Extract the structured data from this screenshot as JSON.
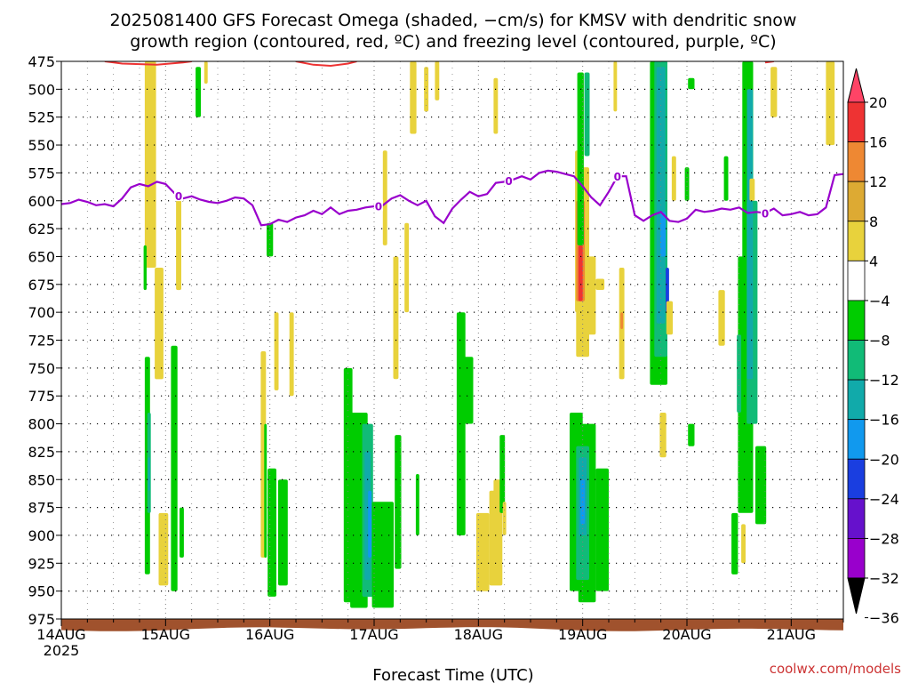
{
  "title": {
    "line1": "2025081400 GFS Forecast Omega (shaded, −cm/s) for KMSV with dendritic snow",
    "line2": "growth region (contoured, red, ºC) and freezing level (contoured, purple, ºC)"
  },
  "credit": {
    "text": "coolwx.com/models",
    "color": "#cc3333"
  },
  "colors": {
    "terrain": "#a0522d",
    "freezing_line": "#9900cc",
    "dgz_line": "#ee3333",
    "grid": "#808080"
  },
  "chart_data": {
    "type": "heatmap",
    "xlabel": "Forecast Time (UTC)",
    "x_ticks": [
      {
        "label": "14AUG",
        "sub": "2025",
        "hour": 0
      },
      {
        "label": "15AUG",
        "sub": "",
        "hour": 24
      },
      {
        "label": "16AUG",
        "sub": "",
        "hour": 48
      },
      {
        "label": "17AUG",
        "sub": "",
        "hour": 72
      },
      {
        "label": "18AUG",
        "sub": "",
        "hour": 96
      },
      {
        "label": "19AUG",
        "sub": "",
        "hour": 120
      },
      {
        "label": "20AUG",
        "sub": "",
        "hour": 144
      },
      {
        "label": "21AUG",
        "sub": "",
        "hour": 168
      }
    ],
    "x_range_hours": [
      0,
      180
    ],
    "y_ticks": [
      475,
      500,
      525,
      550,
      575,
      600,
      625,
      650,
      675,
      700,
      725,
      750,
      775,
      800,
      825,
      850,
      875,
      900,
      925,
      950,
      975
    ],
    "y_range_hpa": [
      475,
      975
    ],
    "grid": true,
    "colorbar": {
      "labels": [
        "20",
        "16",
        "12",
        "8",
        "4",
        "−4",
        "−8",
        "−12",
        "−16",
        "−20",
        "−24",
        "−28",
        "−32",
        "−36"
      ],
      "colors": [
        "#ff4466",
        "#ee3333",
        "#ee8833",
        "#ddaa33",
        "#e8d23c",
        "#ffffff",
        "#00cc00",
        "#11bb77",
        "#11aaaa",
        "#1199ee",
        "#1a3ee0",
        "#6611cc",
        "#9900cc",
        "#aaaaaa",
        "#000000"
      ]
    },
    "freezing_level": {
      "label": "0",
      "points": [
        [
          0,
          603
        ],
        [
          2,
          602
        ],
        [
          4,
          599
        ],
        [
          6,
          601
        ],
        [
          8,
          604
        ],
        [
          10,
          603
        ],
        [
          12,
          605
        ],
        [
          14,
          598
        ],
        [
          16,
          588
        ],
        [
          18,
          585
        ],
        [
          20,
          587
        ],
        [
          22,
          583
        ],
        [
          24,
          585
        ],
        [
          26,
          593
        ],
        [
          28,
          598
        ],
        [
          30,
          596
        ],
        [
          32,
          599
        ],
        [
          34,
          601
        ],
        [
          36,
          602
        ],
        [
          38,
          600
        ],
        [
          40,
          597
        ],
        [
          42,
          598
        ],
        [
          44,
          604
        ],
        [
          46,
          622
        ],
        [
          48,
          621
        ],
        [
          50,
          617
        ],
        [
          52,
          619
        ],
        [
          54,
          615
        ],
        [
          56,
          613
        ],
        [
          58,
          609
        ],
        [
          60,
          612
        ],
        [
          62,
          606
        ],
        [
          64,
          612
        ],
        [
          66,
          609
        ],
        [
          68,
          608
        ],
        [
          70,
          606
        ],
        [
          72,
          605
        ],
        [
          74,
          604
        ],
        [
          76,
          598
        ],
        [
          78,
          595
        ],
        [
          80,
          600
        ],
        [
          82,
          604
        ],
        [
          84,
          600
        ],
        [
          86,
          614
        ],
        [
          88,
          620
        ],
        [
          90,
          607
        ],
        [
          92,
          599
        ],
        [
          94,
          592
        ],
        [
          96,
          596
        ],
        [
          98,
          594
        ],
        [
          100,
          584
        ],
        [
          102,
          583
        ],
        [
          104,
          581
        ],
        [
          106,
          578
        ],
        [
          108,
          581
        ],
        [
          110,
          575
        ],
        [
          112,
          573
        ],
        [
          114,
          574
        ],
        [
          116,
          576
        ],
        [
          118,
          578
        ],
        [
          120,
          587
        ],
        [
          122,
          597
        ],
        [
          124,
          604
        ],
        [
          126,
          592
        ],
        [
          128,
          578
        ],
        [
          130,
          578
        ],
        [
          132,
          613
        ],
        [
          134,
          618
        ],
        [
          136,
          613
        ],
        [
          138,
          610
        ],
        [
          140,
          618
        ],
        [
          142,
          619
        ],
        [
          144,
          616
        ],
        [
          146,
          608
        ],
        [
          148,
          610
        ],
        [
          150,
          609
        ],
        [
          152,
          607
        ],
        [
          154,
          608
        ],
        [
          156,
          606
        ],
        [
          158,
          611
        ],
        [
          160,
          610
        ],
        [
          162,
          611
        ],
        [
          164,
          607
        ],
        [
          166,
          613
        ],
        [
          168,
          612
        ],
        [
          170,
          610
        ],
        [
          172,
          613
        ],
        [
          174,
          612
        ],
        [
          176,
          606
        ],
        [
          178,
          577
        ],
        [
          180,
          576
        ]
      ],
      "label_hours": [
        27,
        73,
        103,
        128,
        162
      ]
    },
    "dgz_contours": [
      {
        "points": [
          [
            10,
            475
          ],
          [
            14,
            477
          ],
          [
            22,
            478
          ],
          [
            28,
            476
          ],
          [
            30,
            475
          ]
        ]
      },
      {
        "points": [
          [
            54,
            475
          ],
          [
            58,
            478
          ],
          [
            62,
            479
          ],
          [
            66,
            477
          ],
          [
            68,
            475
          ]
        ]
      },
      {
        "points": [
          [
            162,
            476
          ],
          [
            164,
            475
          ]
        ]
      }
    ],
    "omega_regions": [
      {
        "hour": 20.5,
        "w": 2.6,
        "top": 475,
        "bottom": 660,
        "value": 4
      },
      {
        "hour": 22.5,
        "w": 2.0,
        "top": 660,
        "bottom": 760,
        "value": 4
      },
      {
        "hour": 23.5,
        "w": 2.2,
        "top": 880,
        "bottom": 945,
        "value": 4
      },
      {
        "hour": 19.8,
        "w": 1.2,
        "top": 740,
        "bottom": 935,
        "value": -8
      },
      {
        "hour": 20.2,
        "w": 0.8,
        "top": 790,
        "bottom": 880,
        "value": -12
      },
      {
        "hour": 20.2,
        "w": 0.5,
        "top": 830,
        "bottom": 860,
        "value": -16
      },
      {
        "hour": 19.3,
        "w": 0.7,
        "top": 640,
        "bottom": 680,
        "value": -8
      },
      {
        "hour": 27.0,
        "w": 1.2,
        "top": 590,
        "bottom": 680,
        "value": 4
      },
      {
        "hour": 26.0,
        "w": 1.5,
        "top": 730,
        "bottom": 950,
        "value": -8
      },
      {
        "hour": 27.7,
        "w": 1.0,
        "top": 875,
        "bottom": 920,
        "value": -8
      },
      {
        "hour": 31.5,
        "w": 1.2,
        "top": 480,
        "bottom": 525,
        "value": -8
      },
      {
        "hour": 33.3,
        "w": 0.8,
        "top": 475,
        "bottom": 495,
        "value": 4
      },
      {
        "hour": 46.5,
        "w": 1.2,
        "top": 735,
        "bottom": 920,
        "value": 4
      },
      {
        "hour": 47.0,
        "w": 0.6,
        "top": 800,
        "bottom": 920,
        "value": -8
      },
      {
        "hour": 48.0,
        "w": 1.5,
        "top": 620,
        "bottom": 650,
        "value": -8
      },
      {
        "hour": 48.5,
        "w": 2.0,
        "top": 840,
        "bottom": 955,
        "value": -8
      },
      {
        "hour": 51.0,
        "w": 2.2,
        "top": 850,
        "bottom": 945,
        "value": -8
      },
      {
        "hour": 49.5,
        "w": 1.0,
        "top": 700,
        "bottom": 770,
        "value": 4
      },
      {
        "hour": 53.0,
        "w": 1.0,
        "top": 700,
        "bottom": 775,
        "value": 4
      },
      {
        "hour": 66.0,
        "w": 2.0,
        "top": 750,
        "bottom": 960,
        "value": -8
      },
      {
        "hour": 68.5,
        "w": 4.0,
        "top": 790,
        "bottom": 965,
        "value": -8
      },
      {
        "hour": 70.5,
        "w": 2.5,
        "top": 800,
        "bottom": 955,
        "value": -12
      },
      {
        "hour": 70.5,
        "w": 1.4,
        "top": 825,
        "bottom": 940,
        "value": -16
      },
      {
        "hour": 71.0,
        "w": 0.8,
        "top": 860,
        "bottom": 920,
        "value": -20
      },
      {
        "hour": 74.0,
        "w": 5.0,
        "top": 870,
        "bottom": 965,
        "value": -8
      },
      {
        "hour": 74.5,
        "w": 1.0,
        "top": 555,
        "bottom": 640,
        "value": 4
      },
      {
        "hour": 77.0,
        "w": 1.2,
        "top": 650,
        "bottom": 760,
        "value": 4
      },
      {
        "hour": 79.5,
        "w": 1.0,
        "top": 620,
        "bottom": 700,
        "value": 4
      },
      {
        "hour": 81.0,
        "w": 1.5,
        "top": 475,
        "bottom": 540,
        "value": 4
      },
      {
        "hour": 84.0,
        "w": 1.0,
        "top": 480,
        "bottom": 520,
        "value": 4
      },
      {
        "hour": 86.5,
        "w": 1.0,
        "top": 475,
        "bottom": 510,
        "value": 4
      },
      {
        "hour": 77.5,
        "w": 1.5,
        "top": 810,
        "bottom": 930,
        "value": -8
      },
      {
        "hour": 82.0,
        "w": 0.8,
        "top": 845,
        "bottom": 900,
        "value": -8
      },
      {
        "hour": 92.0,
        "w": 2.0,
        "top": 700,
        "bottom": 900,
        "value": -8
      },
      {
        "hour": 93.5,
        "w": 2.6,
        "top": 740,
        "bottom": 800,
        "value": -8
      },
      {
        "hour": 97.0,
        "w": 3.0,
        "top": 880,
        "bottom": 950,
        "value": 4
      },
      {
        "hour": 100.0,
        "w": 3.0,
        "top": 860,
        "bottom": 945,
        "value": 4
      },
      {
        "hour": 100.5,
        "w": 2.0,
        "top": 850,
        "bottom": 880,
        "value": 4
      },
      {
        "hour": 100.0,
        "w": 1.0,
        "top": 490,
        "bottom": 540,
        "value": 4
      },
      {
        "hour": 101.5,
        "w": 1.2,
        "top": 810,
        "bottom": 880,
        "value": -8
      },
      {
        "hour": 102.0,
        "w": 0.8,
        "top": 870,
        "bottom": 900,
        "value": 4
      },
      {
        "hour": 119.0,
        "w": 1.5,
        "top": 555,
        "bottom": 700,
        "value": 4
      },
      {
        "hour": 120.0,
        "w": 3.0,
        "top": 570,
        "bottom": 740,
        "value": 4
      },
      {
        "hour": 119.5,
        "w": 2.0,
        "top": 600,
        "bottom": 690,
        "value": 12
      },
      {
        "hour": 119.5,
        "w": 1.0,
        "top": 640,
        "bottom": 690,
        "value": 16
      },
      {
        "hour": 122.0,
        "w": 2.0,
        "top": 650,
        "bottom": 720,
        "value": 4
      },
      {
        "hour": 124.0,
        "w": 2.0,
        "top": 670,
        "bottom": 680,
        "value": 4
      },
      {
        "hour": 118.5,
        "w": 3.0,
        "top": 790,
        "bottom": 950,
        "value": -8
      },
      {
        "hour": 121.0,
        "w": 4.0,
        "top": 800,
        "bottom": 960,
        "value": -8
      },
      {
        "hour": 124.5,
        "w": 3.0,
        "top": 840,
        "bottom": 950,
        "value": -8
      },
      {
        "hour": 120.0,
        "w": 3.0,
        "top": 820,
        "bottom": 940,
        "value": -12
      },
      {
        "hour": 120.0,
        "w": 1.8,
        "top": 830,
        "bottom": 900,
        "value": -16
      },
      {
        "hour": 120.0,
        "w": 1.0,
        "top": 850,
        "bottom": 890,
        "value": -20
      },
      {
        "hour": 119.5,
        "w": 1.5,
        "top": 485,
        "bottom": 640,
        "value": -8
      },
      {
        "hour": 121.0,
        "w": 1.2,
        "top": 485,
        "bottom": 560,
        "value": -12
      },
      {
        "hour": 127.5,
        "w": 0.8,
        "top": 475,
        "bottom": 520,
        "value": 4
      },
      {
        "hour": 129.0,
        "w": 1.2,
        "top": 660,
        "bottom": 760,
        "value": 4
      },
      {
        "hour": 129.0,
        "w": 0.6,
        "top": 700,
        "bottom": 715,
        "value": 12
      },
      {
        "hour": 137.5,
        "w": 4.0,
        "top": 475,
        "bottom": 765,
        "value": -8
      },
      {
        "hour": 138.0,
        "w": 3.0,
        "top": 475,
        "bottom": 740,
        "value": -12
      },
      {
        "hour": 138.0,
        "w": 2.0,
        "top": 480,
        "bottom": 710,
        "value": -16
      },
      {
        "hour": 138.5,
        "w": 1.2,
        "top": 610,
        "bottom": 650,
        "value": -20
      },
      {
        "hour": 139.5,
        "w": 0.8,
        "top": 660,
        "bottom": 700,
        "value": -24
      },
      {
        "hour": 140.0,
        "w": 1.5,
        "top": 690,
        "bottom": 720,
        "value": 4
      },
      {
        "hour": 141.0,
        "w": 1.0,
        "top": 560,
        "bottom": 600,
        "value": 4
      },
      {
        "hour": 144.0,
        "w": 1.0,
        "top": 570,
        "bottom": 600,
        "value": -8
      },
      {
        "hour": 138.5,
        "w": 1.5,
        "top": 790,
        "bottom": 830,
        "value": 4
      },
      {
        "hour": 145.0,
        "w": 1.5,
        "top": 800,
        "bottom": 820,
        "value": -8
      },
      {
        "hour": 145.0,
        "w": 1.5,
        "top": 490,
        "bottom": 500,
        "value": -8
      },
      {
        "hour": 152.0,
        "w": 1.5,
        "top": 680,
        "bottom": 730,
        "value": 4
      },
      {
        "hour": 158.0,
        "w": 2.5,
        "top": 475,
        "bottom": 870,
        "value": -8
      },
      {
        "hour": 157.5,
        "w": 3.5,
        "top": 650,
        "bottom": 880,
        "value": -8
      },
      {
        "hour": 159.0,
        "w": 2.5,
        "top": 600,
        "bottom": 800,
        "value": -12
      },
      {
        "hour": 158.5,
        "w": 1.4,
        "top": 500,
        "bottom": 760,
        "value": -16
      },
      {
        "hour": 156.0,
        "w": 1.0,
        "top": 720,
        "bottom": 790,
        "value": -12
      },
      {
        "hour": 161.0,
        "w": 2.5,
        "top": 820,
        "bottom": 890,
        "value": -8
      },
      {
        "hour": 155.0,
        "w": 1.5,
        "top": 880,
        "bottom": 935,
        "value": -8
      },
      {
        "hour": 157.0,
        "w": 1.0,
        "top": 890,
        "bottom": 925,
        "value": 4
      },
      {
        "hour": 153.0,
        "w": 1.0,
        "top": 560,
        "bottom": 600,
        "value": -8
      },
      {
        "hour": 159.0,
        "w": 1.2,
        "top": 580,
        "bottom": 600,
        "value": 4
      },
      {
        "hour": 164.0,
        "w": 1.5,
        "top": 480,
        "bottom": 525,
        "value": 4
      },
      {
        "hour": 177.0,
        "w": 2.0,
        "top": 475,
        "bottom": 550,
        "value": 4
      }
    ]
  }
}
